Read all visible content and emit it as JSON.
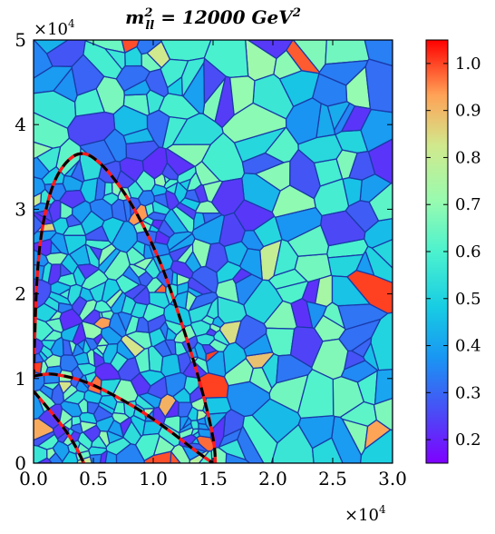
{
  "chart_data": {
    "type": "heatmap",
    "title": "m²ll = 12000 GeV²",
    "title_parts": {
      "symbol": "m",
      "sup": "2",
      "sub": "ll",
      "rest": " = 12000 GeV",
      "rest_sup": "2"
    },
    "xlabel": "",
    "ylabel": "",
    "xlim": [
      0,
      30000
    ],
    "ylim": [
      0,
      50000
    ],
    "x_ticks": [
      0,
      5000,
      10000,
      15000,
      20000,
      25000,
      30000
    ],
    "x_tick_labels": [
      "0.0",
      "0.5",
      "1.0",
      "1.5",
      "2.0",
      "2.5",
      "3.0"
    ],
    "y_ticks": [
      0,
      10000,
      20000,
      30000,
      40000,
      50000
    ],
    "y_tick_labels": [
      "0",
      "1",
      "2",
      "3",
      "4",
      "5"
    ],
    "x_multiplier": "×10",
    "x_multiplier_exp": "4",
    "y_multiplier": "×10",
    "y_multiplier_exp": "4",
    "grid": false,
    "colormap": "rainbow",
    "colorbar": {
      "range": [
        0.15,
        1.05
      ],
      "ticks": [
        0.2,
        0.3,
        0.4,
        0.5,
        0.6,
        0.7,
        0.8,
        0.9,
        1.0
      ],
      "tick_labels": [
        "0.2",
        "0.3",
        "0.4",
        "0.5",
        "0.6",
        "0.7",
        "0.8",
        "0.9",
        "1.0"
      ]
    },
    "cell_edge_color": "#1a3aa8",
    "boundaries": {
      "outer": {
        "color_solid": "#ff1a1a",
        "color_dashed": "#000000",
        "points": [
          [
            0,
            10000
          ],
          [
            300,
            22000
          ],
          [
            900,
            29000
          ],
          [
            2000,
            34000
          ],
          [
            3700,
            36500
          ],
          [
            5500,
            35500
          ],
          [
            8000,
            31000
          ],
          [
            10500,
            24000
          ],
          [
            12500,
            16000
          ],
          [
            14000,
            9000
          ],
          [
            15000,
            3000
          ],
          [
            15200,
            0
          ]
        ]
      },
      "inner": {
        "color_solid": "#ff1a1a",
        "color_dashed": "#000000",
        "points": [
          [
            0,
            10300
          ],
          [
            1700,
            10500
          ],
          [
            4500,
            9500
          ],
          [
            8000,
            7000
          ],
          [
            11000,
            4200
          ],
          [
            13500,
            1500
          ],
          [
            15000,
            0
          ]
        ]
      },
      "lower": {
        "color_solid": "#ff1a1a",
        "color_dashed": "#000000",
        "points": [
          [
            0,
            8500
          ],
          [
            1200,
            6500
          ],
          [
            2500,
            4200
          ],
          [
            3500,
            2000
          ],
          [
            4200,
            0
          ]
        ]
      }
    }
  }
}
